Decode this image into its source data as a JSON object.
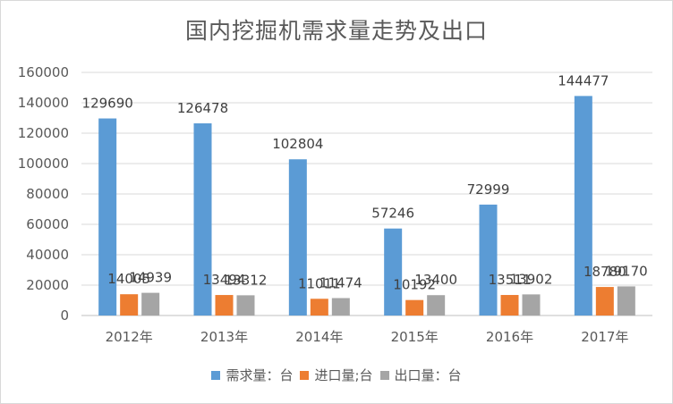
{
  "chart_data": {
    "type": "bar",
    "title": "国内挖掘机需求量走势及出口",
    "categories": [
      "2012年",
      "2013年",
      "2014年",
      "2015年",
      "2016年",
      "2017年"
    ],
    "series": [
      {
        "name": "需求量：台",
        "color": "#5b9bd5",
        "values": [
          129690,
          126478,
          102804,
          57246,
          72999,
          144477
        ]
      },
      {
        "name": "进口量;台",
        "color": "#ed7d31",
        "values": [
          14005,
          13494,
          11011,
          10192,
          13511,
          18780
        ]
      },
      {
        "name": "出口量：台",
        "color": "#a5a5a5",
        "values": [
          14939,
          13312,
          11474,
          13400,
          13902,
          19170
        ]
      }
    ],
    "ylim": [
      0,
      160000
    ],
    "yticks": [
      0,
      20000,
      40000,
      60000,
      80000,
      100000,
      120000,
      140000,
      160000
    ],
    "grid": true,
    "legend": "bottom",
    "xlabel": "",
    "ylabel": ""
  }
}
